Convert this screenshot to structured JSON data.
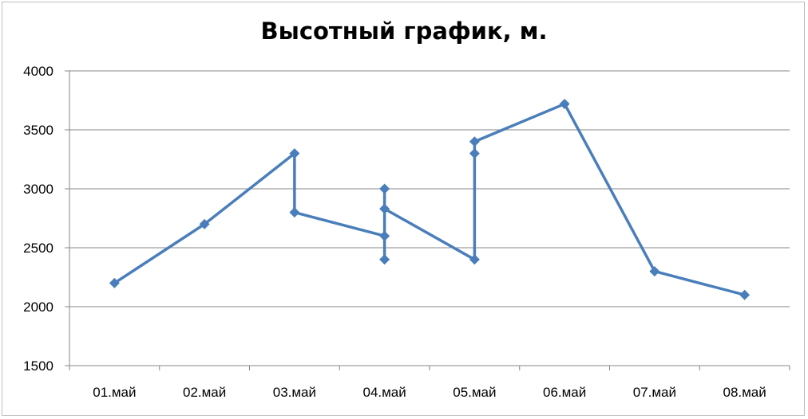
{
  "chart_data": {
    "type": "line",
    "title": "Высотный график, м.",
    "xlabel": "",
    "ylabel": "",
    "categories": [
      "01.май",
      "02.май",
      "03.май",
      "04.май",
      "05.май",
      "06.май",
      "07.май",
      "08.май"
    ],
    "ylim": [
      1500,
      4000
    ],
    "yticks": [
      1500,
      2000,
      2500,
      3000,
      3500,
      4000
    ],
    "grid": true,
    "legend": "none",
    "series": [
      {
        "color": "#4a7ebb",
        "marker": "diamond",
        "points": [
          {
            "x": "01.май",
            "y": 2200
          },
          {
            "x": "02.май",
            "y": 2700
          },
          {
            "x": "03.май",
            "y": 3300
          },
          {
            "x": "03.май",
            "y": 2800
          },
          {
            "x": "04.май",
            "y": 2600
          },
          {
            "x": "04.май",
            "y": 2400
          },
          {
            "x": "04.май",
            "y": 3000
          },
          {
            "x": "04.май",
            "y": 2830
          },
          {
            "x": "05.май",
            "y": 2400
          },
          {
            "x": "05.май",
            "y": 3300
          },
          {
            "x": "05.май",
            "y": 3400
          },
          {
            "x": "06.май",
            "y": 3720
          },
          {
            "x": "07.май",
            "y": 2300
          },
          {
            "x": "08.май",
            "y": 2100
          }
        ]
      }
    ]
  }
}
